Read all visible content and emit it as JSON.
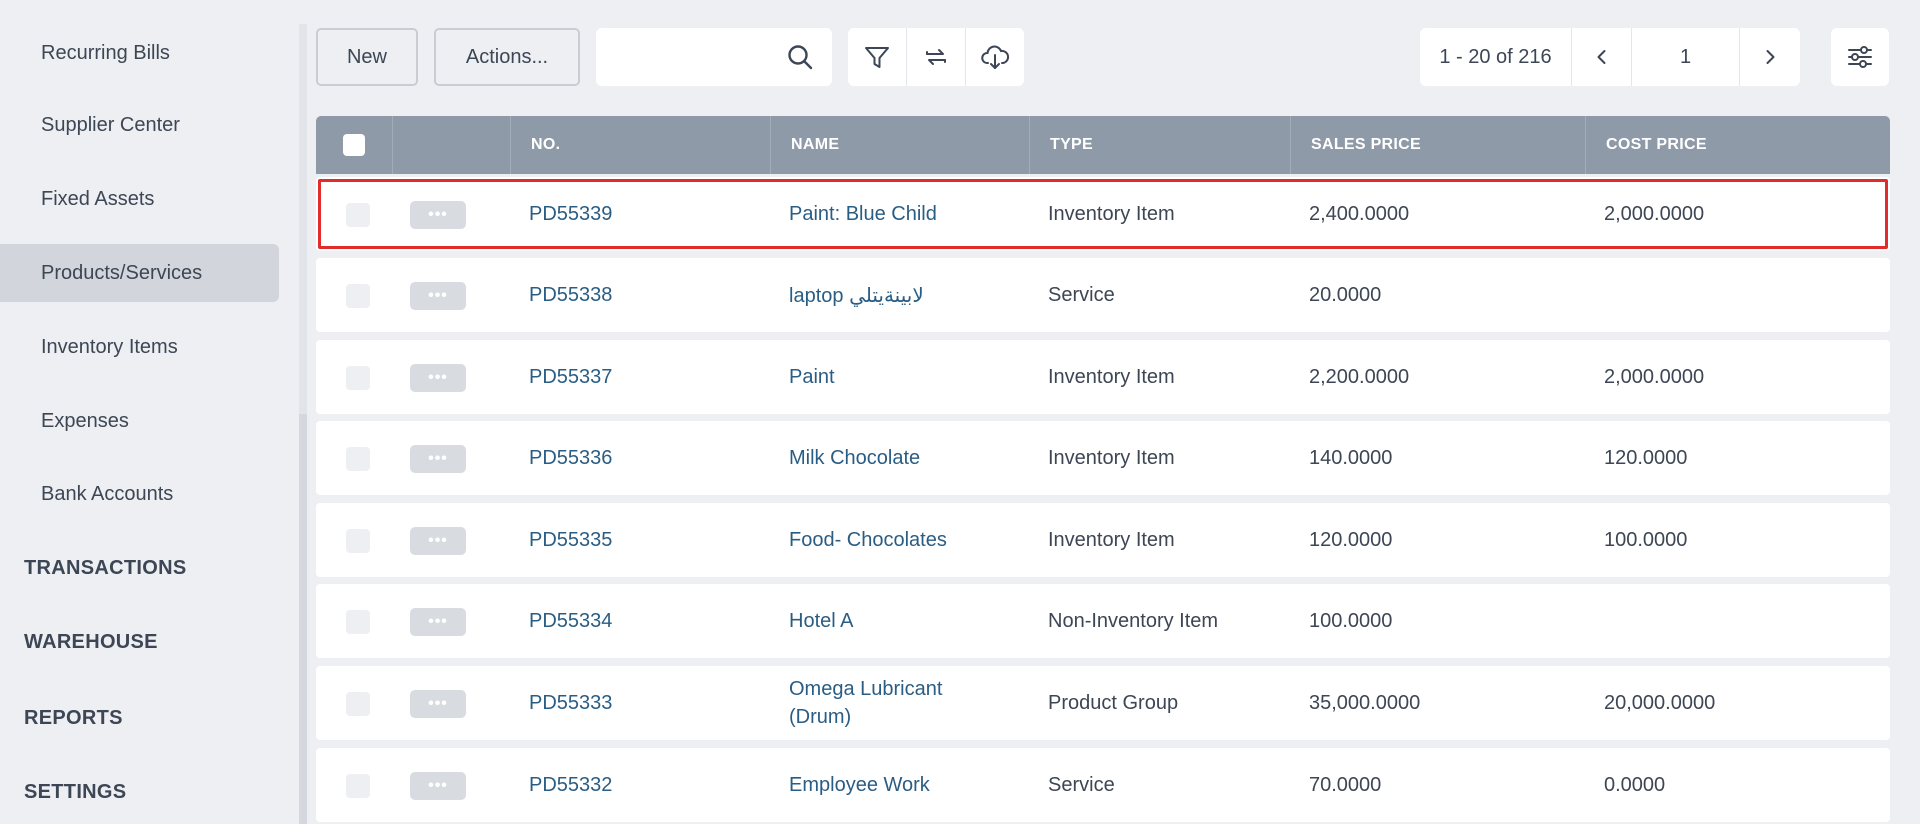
{
  "sidebar": {
    "items": [
      {
        "label": "Recurring Bills",
        "active": false
      },
      {
        "label": "Supplier Center",
        "active": false
      },
      {
        "label": "Fixed Assets",
        "active": false
      },
      {
        "label": "Products/Services",
        "active": true
      },
      {
        "label": "Inventory Items",
        "active": false
      },
      {
        "label": "Expenses",
        "active": false
      },
      {
        "label": "Bank Accounts",
        "active": false
      }
    ],
    "sections": [
      "TRANSACTIONS",
      "WAREHOUSE",
      "REPORTS",
      "SETTINGS"
    ]
  },
  "toolbar": {
    "new_label": "New",
    "actions_label": "Actions...",
    "search_value": "",
    "search_placeholder": "",
    "icons": [
      "search-icon",
      "filter-icon",
      "refresh-icon",
      "download-icon",
      "settings-sliders-icon"
    ]
  },
  "pagination": {
    "range": "1 - 20 of 216",
    "page": "1"
  },
  "table": {
    "columns": [
      "NO.",
      "NAME",
      "TYPE",
      "SALES PRICE",
      "COST PRICE"
    ],
    "rows": [
      {
        "no": "PD55339",
        "name": "Paint: Blue Child",
        "type": "Inventory Item",
        "sales": "2,400.0000",
        "cost": "2,000.0000",
        "selected": true
      },
      {
        "no": "PD55338",
        "name": "laptop لابينةيتلي",
        "type": "Service",
        "sales": "20.0000",
        "cost": ""
      },
      {
        "no": "PD55337",
        "name": "Paint",
        "type": "Inventory Item",
        "sales": "2,200.0000",
        "cost": "2,000.0000"
      },
      {
        "no": "PD55336",
        "name": "Milk Chocolate",
        "type": "Inventory Item",
        "sales": "140.0000",
        "cost": "120.0000"
      },
      {
        "no": "PD55335",
        "name": "Food- Chocolates",
        "type": "Inventory Item",
        "sales": "120.0000",
        "cost": "100.0000"
      },
      {
        "no": "PD55334",
        "name": "Hotel A",
        "type": "Non-Inventory Item",
        "sales": "100.0000",
        "cost": ""
      },
      {
        "no": "PD55333",
        "name": "Omega Lubricant (Drum)",
        "type": "Product Group",
        "sales": "35,000.0000",
        "cost": "20,000.0000"
      },
      {
        "no": "PD55332",
        "name": "Employee Work",
        "type": "Service",
        "sales": "70.0000",
        "cost": "0.0000"
      }
    ],
    "row_menu_glyph": "•••"
  },
  "colors": {
    "background": "#edeff3",
    "header": "#8e9aa8",
    "link": "#2a5d84",
    "selection_outline": "#e22c2c",
    "active_nav": "#d2d6dc"
  }
}
